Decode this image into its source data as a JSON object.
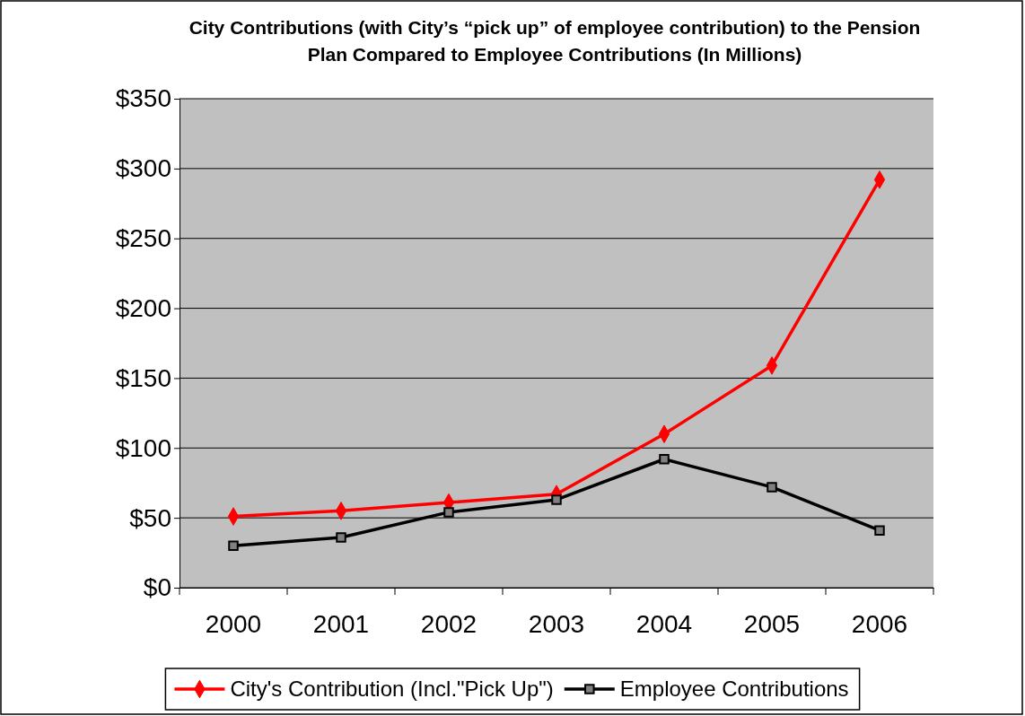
{
  "chart_data": {
    "type": "line",
    "title": "City Contributions (with City’s “pick up” of employee contribution) to the Pension Plan Compared to Employee Contributions (In Millions)",
    "categories": [
      "2000",
      "2001",
      "2002",
      "2003",
      "2004",
      "2005",
      "2006"
    ],
    "series": [
      {
        "name": "City's Contribution (Incl.\"Pick Up\")",
        "color": "#ff0000",
        "marker": "diamond",
        "values": [
          51,
          55,
          61,
          67,
          110,
          159,
          292
        ]
      },
      {
        "name": "Employee Contributions",
        "color": "#000000",
        "marker": "square",
        "values": [
          30,
          36,
          54,
          63,
          92,
          72,
          41
        ]
      }
    ],
    "ylim": [
      0,
      350
    ],
    "yticks": [
      {
        "value": 0,
        "label": "$0"
      },
      {
        "value": 50,
        "label": "$50"
      },
      {
        "value": 100,
        "label": "$100"
      },
      {
        "value": 150,
        "label": "$150"
      },
      {
        "value": 200,
        "label": "$200"
      },
      {
        "value": 250,
        "label": "$250"
      },
      {
        "value": 300,
        "label": "$300"
      },
      {
        "value": 350,
        "label": "$350"
      }
    ],
    "grid": "y",
    "legend": "bottom",
    "line_style": "solid"
  }
}
